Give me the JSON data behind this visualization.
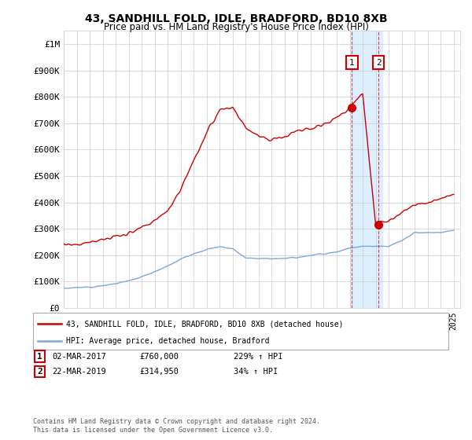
{
  "title": "43, SANDHILL FOLD, IDLE, BRADFORD, BD10 8XB",
  "subtitle": "Price paid vs. HM Land Registry's House Price Index (HPI)",
  "legend_line1": "43, SANDHILL FOLD, IDLE, BRADFORD, BD10 8XB (detached house)",
  "legend_line2": "HPI: Average price, detached house, Bradford",
  "annotation1_date": "02-MAR-2017",
  "annotation1_price": "£760,000",
  "annotation1_hpi": "229% ↑ HPI",
  "annotation2_date": "22-MAR-2019",
  "annotation2_price": "£314,950",
  "annotation2_hpi": "34% ↑ HPI",
  "footer": "Contains HM Land Registry data © Crown copyright and database right 2024.\nThis data is licensed under the Open Government Licence v3.0.",
  "red_color": "#cc0000",
  "blue_color": "#7aaadd",
  "highlight_box_color": "#ddeeff",
  "ylim": [
    0,
    1050000
  ],
  "yticks": [
    0,
    100000,
    200000,
    300000,
    400000,
    500000,
    600000,
    700000,
    800000,
    900000,
    1000000
  ],
  "ytick_labels": [
    "£0",
    "£100K",
    "£200K",
    "£300K",
    "£400K",
    "£500K",
    "£600K",
    "£700K",
    "£800K",
    "£900K",
    "£1M"
  ],
  "pt1_year": 2017.17,
  "pt1_val": 760000,
  "pt2_year": 2019.22,
  "pt2_val": 314950,
  "year_start": 1995,
  "year_end": 2025
}
